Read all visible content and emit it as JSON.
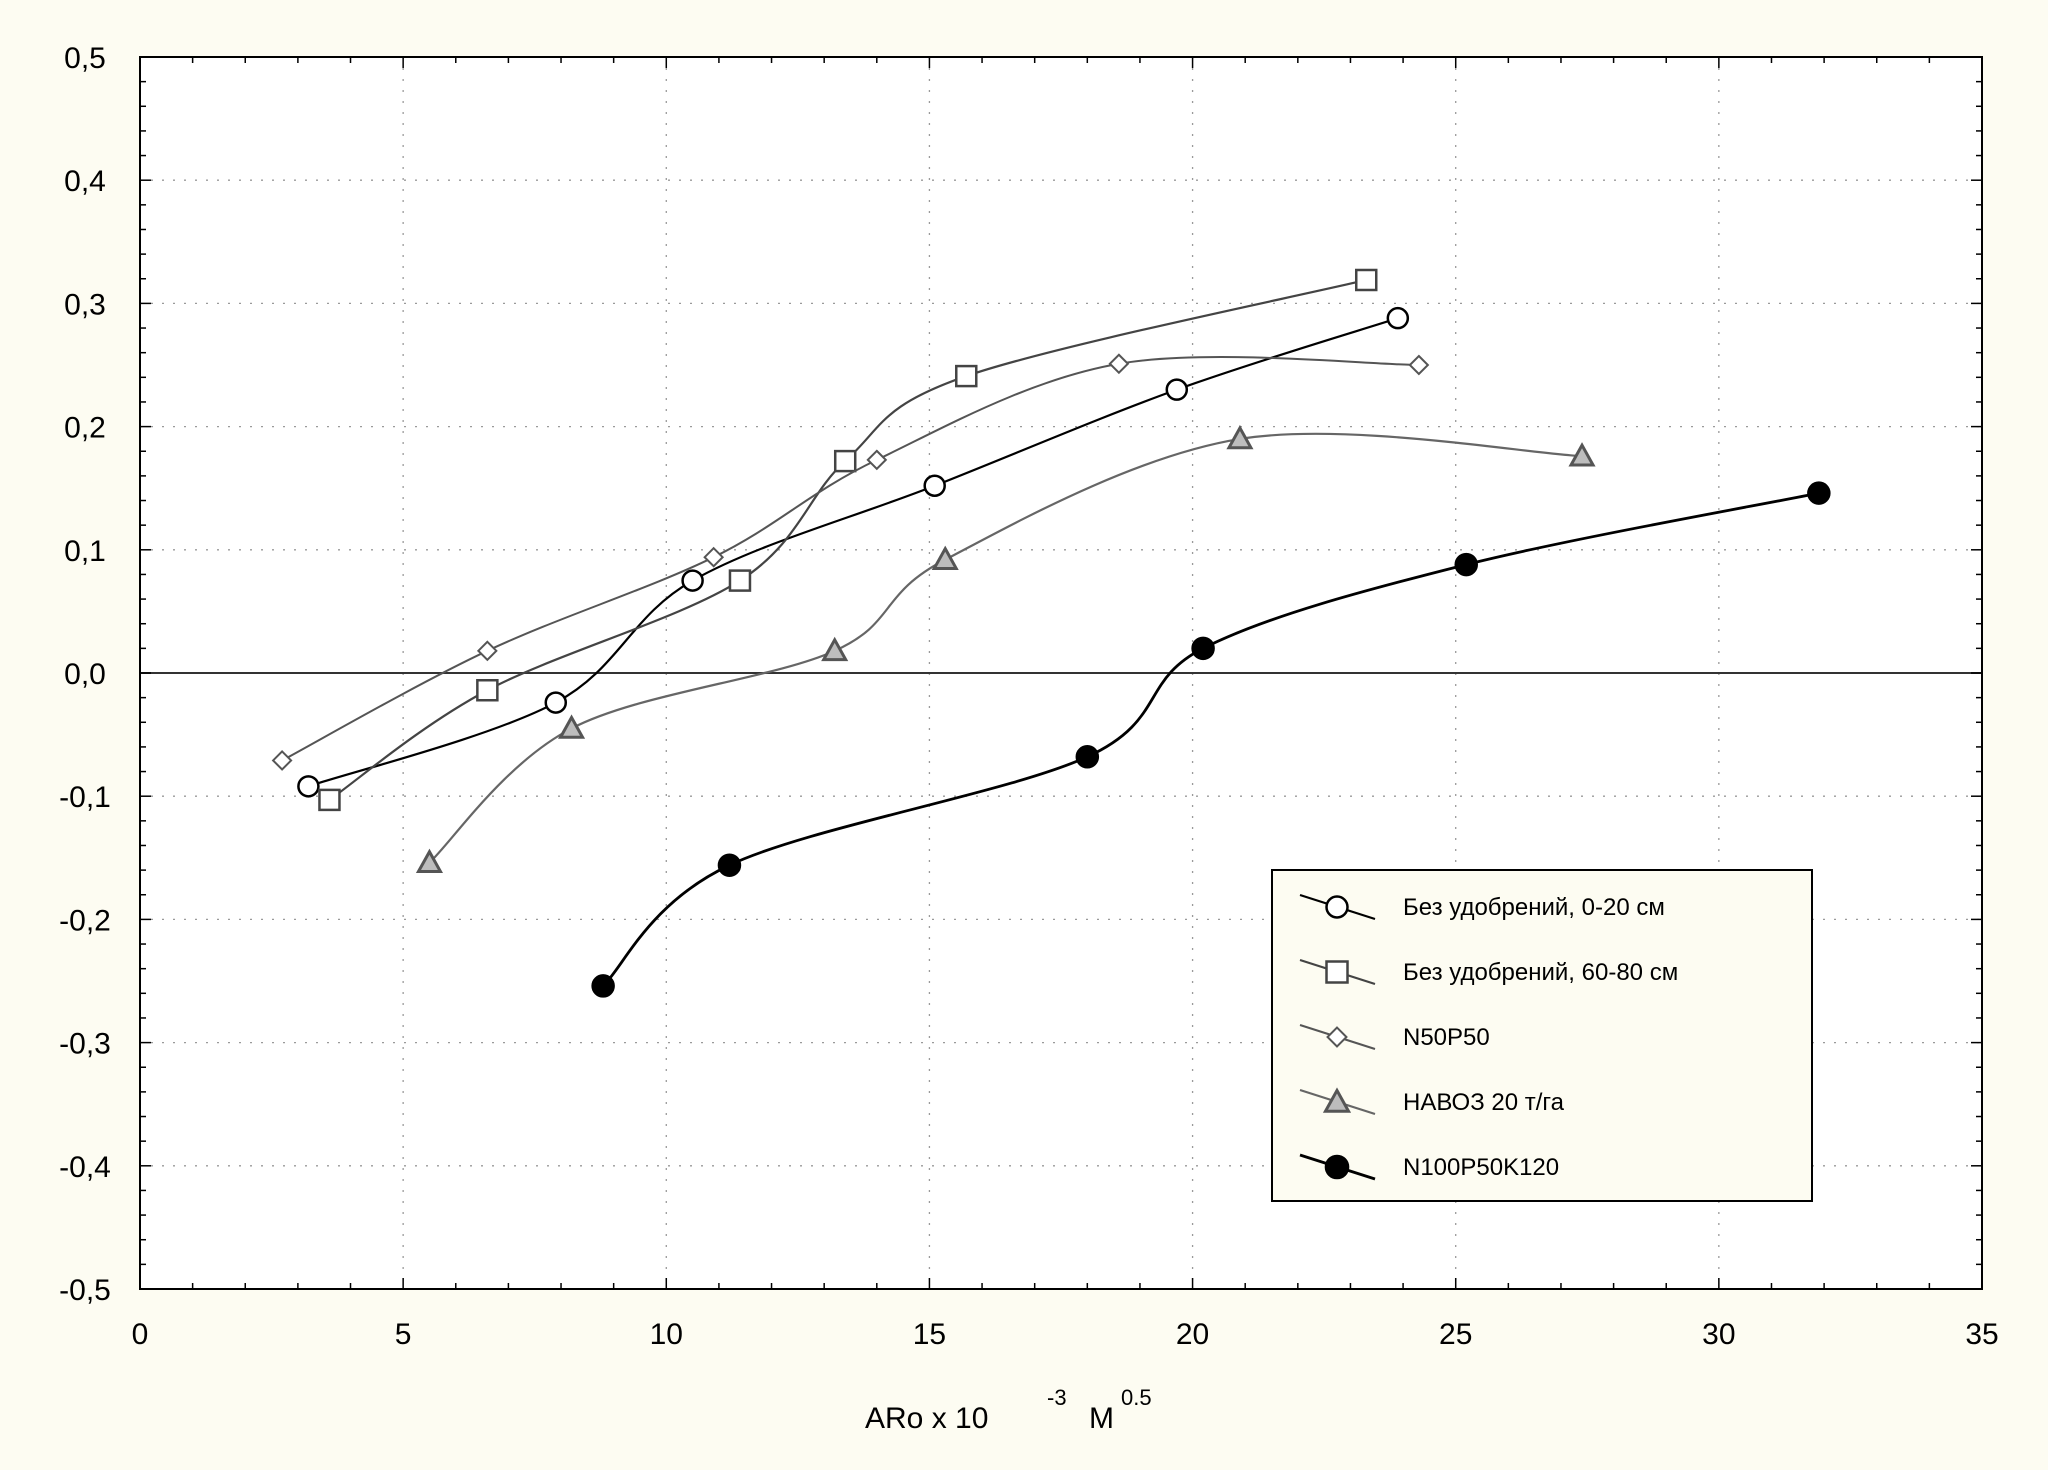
{
  "chart_data": {
    "type": "line",
    "title": "",
    "xlabel_parts": {
      "base": "ARo x 10",
      "exp": "-3",
      "unit": "M",
      "unit_exp": "0.5"
    },
    "ylabel": "",
    "xlim": [
      0,
      35
    ],
    "ylim": [
      -0.5,
      0.5
    ],
    "x_ticks": [
      0,
      5,
      10,
      15,
      20,
      25,
      30,
      35
    ],
    "x_tick_labels": [
      "0",
      "5",
      "10",
      "15",
      "20",
      "25",
      "30",
      "35"
    ],
    "y_ticks": [
      0.5,
      0.4,
      0.3,
      0.2,
      0.1,
      0.0,
      -0.1,
      -0.2,
      -0.3,
      -0.4,
      -0.5
    ],
    "y_tick_labels": [
      "0,5",
      "0,4",
      "0,3",
      "0,2",
      "0,1",
      "0,0",
      "-0,1",
      "-0,2",
      "-0,3",
      "-0,4",
      "-0,5"
    ],
    "grid": true,
    "legend_position": "bottom-right",
    "series": [
      {
        "name": "Без удобрений, 0-20 см",
        "marker": "circle-open",
        "color": "#000000",
        "x": [
          3.2,
          7.9,
          10.5,
          15.1,
          19.7,
          23.9
        ],
        "y": [
          -0.092,
          -0.024,
          0.075,
          0.152,
          0.23,
          0.288
        ]
      },
      {
        "name": "Без удобрений, 60-80 см",
        "marker": "square-open",
        "color": "#444444",
        "x": [
          3.6,
          6.6,
          11.4,
          13.4,
          15.7,
          23.3
        ],
        "y": [
          -0.103,
          -0.014,
          0.075,
          0.172,
          0.241,
          0.319
        ]
      },
      {
        "name": "N50P50",
        "marker": "diamond-open",
        "color": "#555555",
        "x": [
          2.7,
          6.6,
          10.9,
          14.0,
          18.6,
          24.3
        ],
        "y": [
          -0.071,
          0.018,
          0.094,
          0.173,
          0.251,
          0.25
        ]
      },
      {
        "name": "НАВОЗ 20 т/га",
        "marker": "triangle-gray",
        "color": "#666666",
        "x": [
          5.5,
          8.2,
          13.2,
          15.3,
          20.9,
          27.4
        ],
        "y": [
          -0.154,
          -0.045,
          0.018,
          0.092,
          0.19,
          0.176
        ]
      },
      {
        "name": "N100P50K120",
        "marker": "circle-filled",
        "color": "#000000",
        "x": [
          8.8,
          11.2,
          18.0,
          20.2,
          25.2,
          31.9
        ],
        "y": [
          -0.254,
          -0.156,
          -0.068,
          0.02,
          0.088,
          0.146
        ]
      }
    ]
  }
}
